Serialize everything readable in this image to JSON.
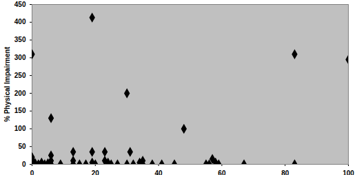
{
  "chart_data": {
    "type": "scatter",
    "y_label": "% Physical Impairment",
    "x": [
      0,
      0,
      0,
      0,
      0,
      0,
      1,
      2,
      3,
      4,
      5,
      6,
      6,
      6,
      6,
      9,
      13,
      13,
      13,
      15,
      17,
      19,
      19,
      19,
      20,
      23,
      23,
      24,
      25,
      27,
      30,
      30,
      31,
      32,
      34,
      35,
      35,
      38,
      41,
      45,
      48,
      55,
      56,
      57,
      58,
      59,
      67,
      83,
      83,
      100
    ],
    "values": [
      310,
      20,
      15,
      10,
      5,
      0,
      3,
      0,
      5,
      0,
      3,
      130,
      25,
      10,
      0,
      0,
      35,
      10,
      0,
      0,
      0,
      413,
      35,
      5,
      0,
      35,
      10,
      5,
      0,
      0,
      200,
      0,
      35,
      0,
      5,
      10,
      0,
      0,
      0,
      0,
      100,
      0,
      0,
      15,
      5,
      0,
      0,
      310,
      0,
      295
    ],
    "color": "#000000",
    "marker": "diamond",
    "xlim": [
      0,
      100
    ],
    "xticks": [
      0,
      20,
      40,
      60,
      80,
      100
    ],
    "ylim": [
      0,
      450
    ],
    "yticks": [
      0,
      50,
      100,
      150,
      200,
      250,
      300,
      350,
      400,
      450
    ],
    "grid": false
  }
}
